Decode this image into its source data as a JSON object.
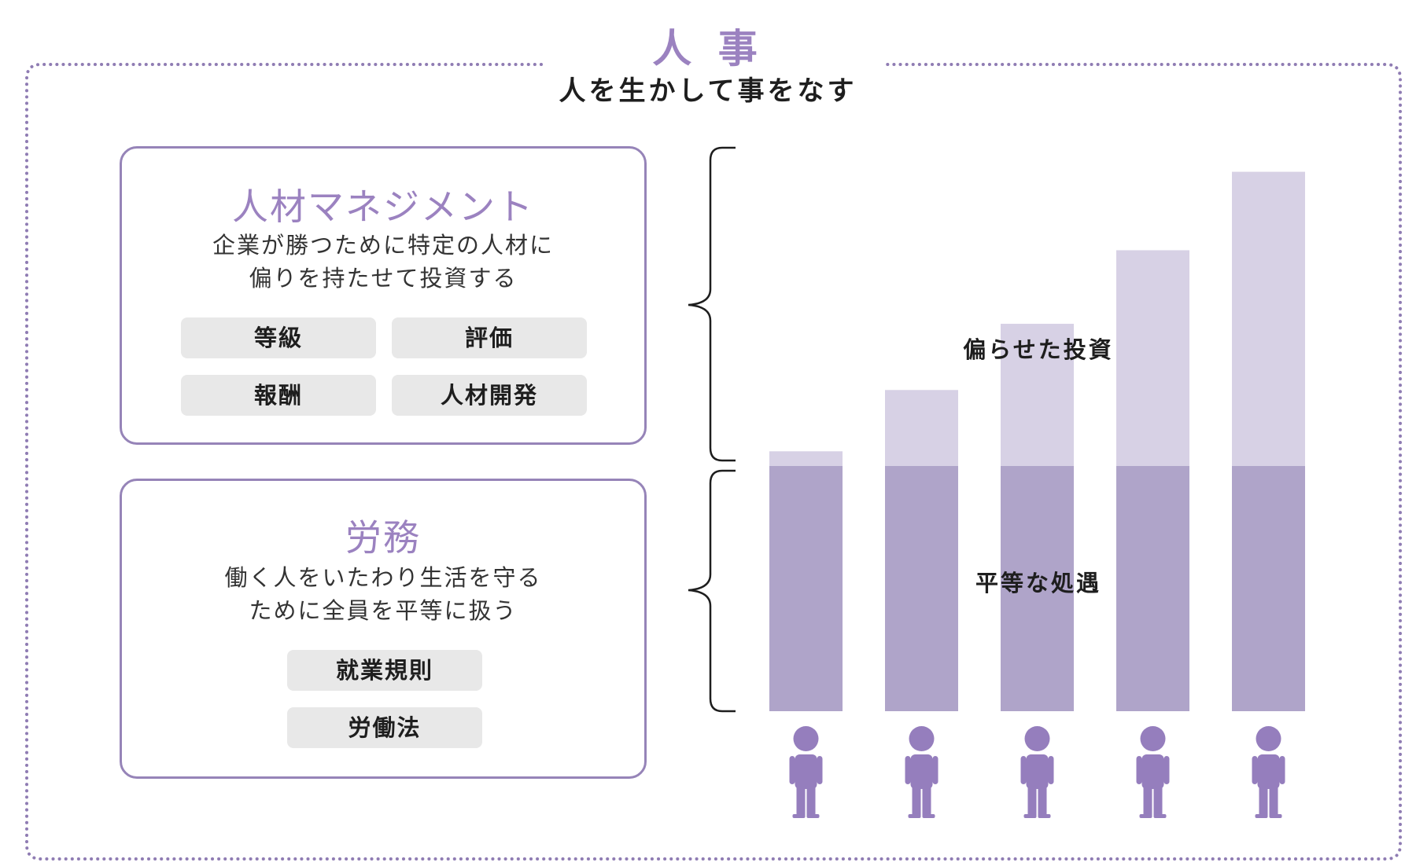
{
  "title": "人 事",
  "subtitle": "人を生かして事をなす",
  "colors": {
    "accent": "#9b82c0",
    "panel_border": "#9684b8",
    "dotted_border": "#8f7cb3",
    "bar_light": "#d7d1e5",
    "bar_dark": "#afa4c9",
    "person": "#957ebd",
    "chip_bg": "#e8e8e8"
  },
  "panels": {
    "talent": {
      "title": "人材マネジメント",
      "description": [
        "企業が勝つために特定の人材に",
        "偏りを持たせて投資する"
      ],
      "chips": [
        "等級",
        "評価",
        "報酬",
        "人材開発"
      ]
    },
    "labor": {
      "title": "労務",
      "description": [
        "働く人をいたわり生活を守る",
        "ために全員を平等に扱う"
      ],
      "chips": [
        "就業規則",
        "労働法"
      ]
    }
  },
  "chart_data": {
    "type": "bar",
    "stacked": true,
    "categories": [
      "",
      "",
      "",
      "",
      ""
    ],
    "series": [
      {
        "name": "平等な処遇",
        "values": [
          1,
          1,
          1,
          1,
          1
        ]
      },
      {
        "name": "偏らせた投資",
        "values": [
          0.06,
          0.31,
          0.58,
          0.88,
          1.2
        ]
      }
    ],
    "ylim": [
      0,
      2.2
    ],
    "labels": {
      "top": "偏らせた投資",
      "bottom": "平等な処遇"
    },
    "people_icons": 5,
    "person_icon": "person-icon",
    "grid": false
  }
}
